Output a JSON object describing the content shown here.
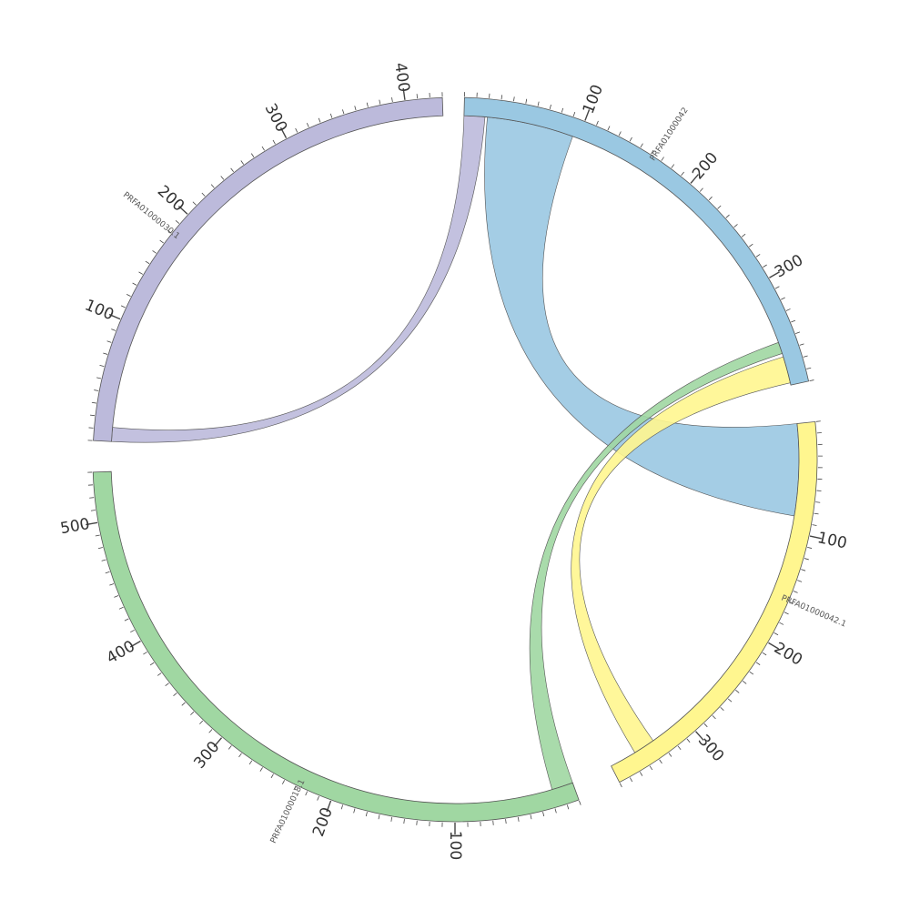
{
  "chart_data": {
    "type": "chord",
    "segments": [
      {
        "id": "s42",
        "label": "PRFA01000042",
        "length": 390,
        "color": "#9ac8e2",
        "ticks": [
          "100",
          "200",
          "300"
        ],
        "tick_values": [
          100,
          200,
          300
        ]
      },
      {
        "id": "s42_1",
        "label": "PRFA01000042.1",
        "length": 380,
        "color": "#fff68f",
        "ticks": [
          "100",
          "200",
          "300"
        ],
        "tick_values": [
          100,
          200,
          300
        ]
      },
      {
        "id": "s18",
        "label": "PRFA01000018.1",
        "length": 540,
        "color": "#a0d7a2",
        "ticks": [
          "100",
          "200",
          "300",
          "400",
          "500"
        ],
        "tick_values": [
          100,
          200,
          300,
          400,
          500
        ]
      },
      {
        "id": "s30",
        "label": "PRFA01000030.1",
        "length": 430,
        "color": "#bcbadb",
        "ticks": [
          "100",
          "200",
          "300",
          "400"
        ],
        "tick_values": [
          100,
          200,
          300,
          400
        ]
      }
    ],
    "links": [
      {
        "from": "s42",
        "from_start": 20,
        "from_end": 95,
        "to": "s42_1",
        "to_start": 0,
        "to_end": 85,
        "color": "#9ac8e2"
      },
      {
        "from": "s42",
        "from_start": 0,
        "from_end": 18,
        "to": "s30",
        "to_start": 0,
        "to_end": 12,
        "color": "#bcbadb"
      },
      {
        "from": "s42",
        "from_start": 365,
        "from_end": 388,
        "to": "s42_1",
        "to_start": 335,
        "to_end": 355,
        "color": "#fff68f"
      },
      {
        "from": "s42",
        "from_start": 352,
        "from_end": 362,
        "to": "s18",
        "to_start": 0,
        "to_end": 18,
        "color": "#a0d7a2"
      }
    ]
  }
}
